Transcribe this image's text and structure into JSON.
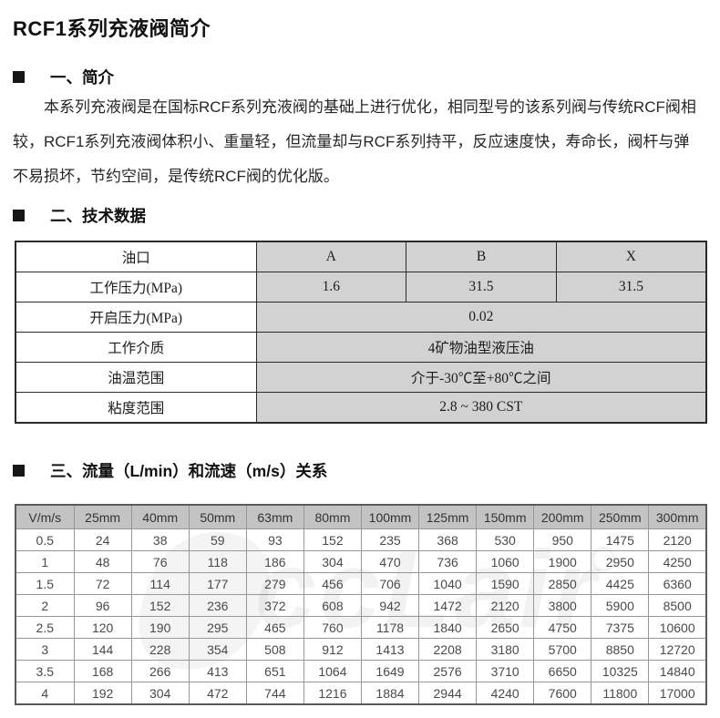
{
  "page": {
    "title": "RCF1系列充液阀简介"
  },
  "sections": {
    "intro": {
      "heading": "一、简介",
      "lines": [
        "本系列充液阀是在国标RCF系列充液阀的基础上进行优化，相同型号的该系列阀与传统RCF阀相",
        "较，RCF1系列充液阀体积小、重量轻，但流量却与RCF系列持平，反应速度快，寿命长，阀杆与弹",
        "不易损坏，节约空间，是传统RCF阀的优化版。"
      ]
    },
    "tech": {
      "heading": "二、技术数据",
      "table": {
        "rows": [
          {
            "label": "油口",
            "values": [
              "A",
              "B",
              "X"
            ]
          },
          {
            "label": "工作压力(MPa)",
            "values": [
              "1.6",
              "31.5",
              "31.5"
            ]
          },
          {
            "label": "开启压力(MPa)",
            "span": "0.02"
          },
          {
            "label": "工作介质",
            "span": "4矿物油型液压油"
          },
          {
            "label": "油温范围",
            "span": "介于-30℃至+80℃之间"
          },
          {
            "label": "粘度范围",
            "span": "2.8 ~ 380 CST"
          }
        ]
      }
    },
    "flow": {
      "heading": "三、流量（L/min）和流速（m/s）关系",
      "table": {
        "headers": [
          "V/m/s",
          "25mm",
          "40mm",
          "50mm",
          "63mm",
          "80mm",
          "100mm",
          "125mm",
          "150mm",
          "200mm",
          "250mm",
          "300mm"
        ],
        "rows": [
          [
            "0.5",
            "24",
            "38",
            "59",
            "93",
            "152",
            "235",
            "368",
            "530",
            "950",
            "1475",
            "2120"
          ],
          [
            "1",
            "48",
            "76",
            "118",
            "186",
            "304",
            "470",
            "736",
            "1060",
            "1900",
            "2950",
            "4250"
          ],
          [
            "1.5",
            "72",
            "114",
            "177",
            "279",
            "456",
            "706",
            "1040",
            "1590",
            "2850",
            "4425",
            "6360"
          ],
          [
            "2",
            "96",
            "152",
            "236",
            "372",
            "608",
            "942",
            "1472",
            "2120",
            "3800",
            "5900",
            "8500"
          ],
          [
            "2.5",
            "120",
            "190",
            "295",
            "465",
            "760",
            "1178",
            "1840",
            "2650",
            "4750",
            "7375",
            "10600"
          ],
          [
            "3",
            "144",
            "228",
            "354",
            "508",
            "912",
            "1413",
            "2208",
            "3180",
            "5700",
            "8850",
            "12720"
          ],
          [
            "3.5",
            "168",
            "266",
            "413",
            "651",
            "1064",
            "1649",
            "2576",
            "3710",
            "6650",
            "10325",
            "14840"
          ],
          [
            "4",
            "192",
            "304",
            "472",
            "744",
            "1216",
            "1884",
            "2944",
            "4240",
            "7600",
            "11800",
            "17000"
          ]
        ]
      }
    }
  },
  "watermark": {
    "text": "ccLair"
  },
  "colors": {
    "tech_value_cell_bg": "#d2d2d2",
    "flow_header_bg": "#c3c3c3",
    "table_border_dark": "#2b2b2b",
    "flow_border": "#979797",
    "text_primary": "#1a1a1a"
  }
}
